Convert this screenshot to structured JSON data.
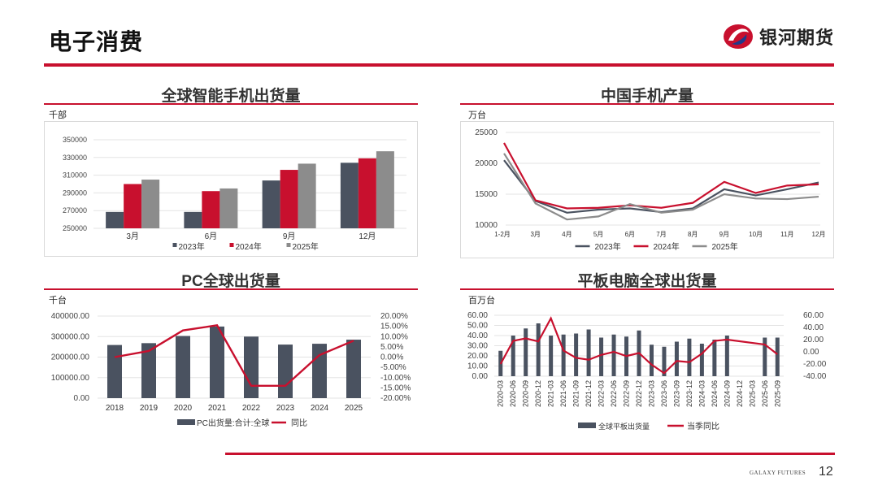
{
  "header": {
    "title": "电子消费",
    "brand_name": "银河期货"
  },
  "footer": {
    "brand": "GALAXY FUTURES",
    "page_number": "12"
  },
  "colors": {
    "accent": "#c8102e",
    "dark": "#4a5260",
    "red": "#c8102e",
    "grey": "#8c8c8c"
  },
  "chart_data": [
    {
      "type": "bar",
      "title": "全球智能手机出货量",
      "unit": "千部",
      "categories": [
        "3月",
        "6月",
        "9月",
        "12月"
      ],
      "ylim": [
        250000,
        350000
      ],
      "yticks": [
        "350000",
        "330000",
        "310000",
        "290000",
        "270000",
        "250000"
      ],
      "series": [
        {
          "name": "2023年",
          "color": "#4a5260",
          "values": [
            268500,
            268500,
            304000,
            324000
          ]
        },
        {
          "name": "2024年",
          "color": "#c8102e",
          "values": [
            300000,
            292000,
            316000,
            329000
          ]
        },
        {
          "name": "2025年",
          "color": "#8c8c8c",
          "values": [
            305000,
            295000,
            323000,
            337000
          ]
        }
      ],
      "legend": "bottom"
    },
    {
      "type": "line",
      "title": "中国手机产量",
      "unit": "万台",
      "categories": [
        "1-2月",
        "3月",
        "4月",
        "5月",
        "6月",
        "7月",
        "8月",
        "9月",
        "10月",
        "11月",
        "12月"
      ],
      "ylim": [
        10000,
        25000
      ],
      "yticks": [
        "25000",
        "20000",
        "15000",
        "10000"
      ],
      "series": [
        {
          "name": "2023年",
          "color": "#4a5260",
          "values": [
            20500,
            13900,
            12000,
            12500,
            12700,
            12100,
            12700,
            15800,
            14800,
            15800,
            16900
          ]
        },
        {
          "name": "2024年",
          "color": "#c8102e",
          "values": [
            23300,
            14000,
            12700,
            12800,
            13200,
            12800,
            13600,
            17000,
            15200,
            16400,
            16600
          ]
        },
        {
          "name": "2025年",
          "color": "#8c8c8c",
          "values": [
            21600,
            13500,
            10900,
            11400,
            13400,
            12000,
            12500,
            15000,
            14300,
            14200,
            14600
          ]
        }
      ],
      "legend": "bottom"
    },
    {
      "type": "bar+line",
      "title": "PC全球出货量",
      "unit": "千台",
      "categories": [
        "2018",
        "2019",
        "2020",
        "2021",
        "2022",
        "2023",
        "2024",
        "2025"
      ],
      "ylim": [
        0,
        400000
      ],
      "yticks": [
        "400000.00",
        "300000.00",
        "200000.00",
        "100000.00",
        "0.00"
      ],
      "y2lim": [
        -20,
        20
      ],
      "y2ticks": [
        "20.00%",
        "15.00%",
        "10.00%",
        "5.00%",
        "0.00%",
        "-5.00%",
        "-10.00%",
        "-15.00%",
        "-20.00%"
      ],
      "series": [
        {
          "name": "PC出货量:合计:全球",
          "color": "#4a5260",
          "kind": "bar",
          "values": [
            259000,
            268000,
            303000,
            349000,
            300000,
            261000,
            265000,
            285000
          ]
        },
        {
          "name": "同比",
          "color": "#c8102e",
          "kind": "line",
          "axis": "right",
          "values": [
            0,
            3,
            13,
            15.5,
            -14,
            -14,
            1,
            8
          ]
        }
      ],
      "legend": "bottom"
    },
    {
      "type": "bar+line",
      "title": "平板电脑全球出货量",
      "unit": "百万台",
      "categories": [
        "2020-03",
        "2020-06",
        "2020-09",
        "2020-12",
        "2021-03",
        "2021-06",
        "2021-09",
        "2021-12",
        "2022-03",
        "2022-06",
        "2022-09",
        "2022-12",
        "2023-03",
        "2023-06",
        "2023-09",
        "2023-12",
        "2024-03",
        "2024-06",
        "2024-09",
        "2024-12",
        "2025-03",
        "2025-06",
        "2025-09"
      ],
      "ylim": [
        0,
        60
      ],
      "yticks": [
        "60.00",
        "50.00",
        "40.00",
        "30.00",
        "20.00",
        "10.00",
        "0.00"
      ],
      "y2lim": [
        -40,
        60
      ],
      "y2ticks": [
        "60.00",
        "40.00",
        "20.00",
        "0.00",
        "-20.00",
        "-40.00"
      ],
      "series": [
        {
          "name": "全球平板出货量",
          "color": "#4a5260",
          "kind": "bar",
          "values": [
            25,
            40,
            47,
            52,
            40,
            41,
            42,
            46,
            38,
            41,
            39,
            45,
            31,
            29,
            34,
            37,
            32,
            36,
            40,
            null,
            null,
            38,
            38
          ]
        },
        {
          "name": "当季同比",
          "color": "#c8102e",
          "kind": "line",
          "axis": "right",
          "values": [
            -20,
            18,
            22,
            17,
            55,
            2,
            -10,
            -13,
            -5,
            0,
            -7,
            -2,
            -21,
            -35,
            -15,
            -17,
            -3,
            18,
            20,
            null,
            null,
            12,
            -4
          ]
        }
      ],
      "legend": "bottom"
    }
  ]
}
